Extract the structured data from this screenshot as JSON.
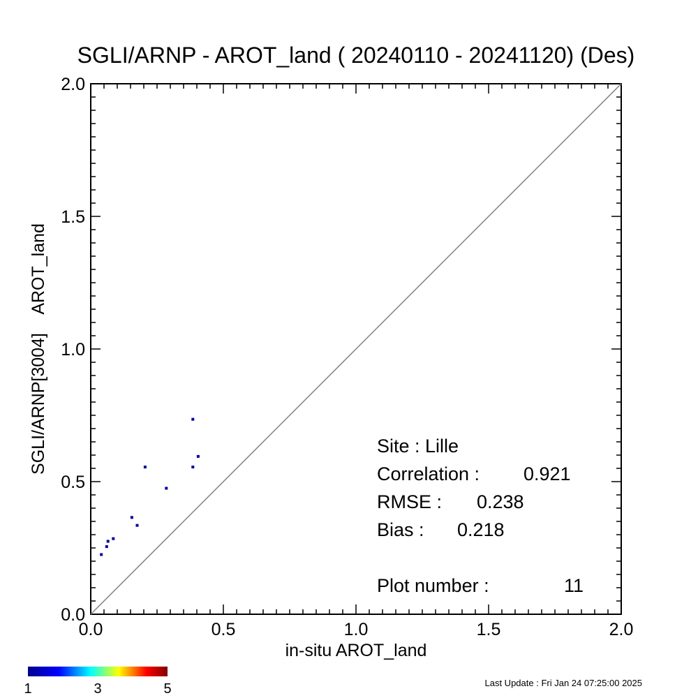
{
  "chart_data": {
    "type": "scatter",
    "title": "SGLI/ARNP - AROT_land ( 20240110 - 20241120) (Des)",
    "xlabel": "in-situ AROT_land",
    "ylabel": "SGLI/ARNP[3004]    AROT_land",
    "xlim": [
      0.0,
      2.0
    ],
    "ylim": [
      0.0,
      2.0
    ],
    "x_ticks": [
      "0.0",
      "0.5",
      "1.0",
      "1.5",
      "2.0"
    ],
    "y_ticks": [
      "0.0",
      "0.5",
      "1.0",
      "1.5",
      "2.0"
    ],
    "grid": false,
    "reference_line": "1:1",
    "point_color": "#0000a0",
    "line_color": "#808080",
    "points": [
      {
        "x": 0.04,
        "y": 0.225
      },
      {
        "x": 0.06,
        "y": 0.255
      },
      {
        "x": 0.065,
        "y": 0.275
      },
      {
        "x": 0.085,
        "y": 0.285
      },
      {
        "x": 0.155,
        "y": 0.365
      },
      {
        "x": 0.175,
        "y": 0.335
      },
      {
        "x": 0.205,
        "y": 0.555
      },
      {
        "x": 0.285,
        "y": 0.475
      },
      {
        "x": 0.385,
        "y": 0.735
      },
      {
        "x": 0.385,
        "y": 0.555
      },
      {
        "x": 0.405,
        "y": 0.595
      }
    ]
  },
  "stats": {
    "site_label": "Site : Lille",
    "correlation_label": "Correlation :",
    "correlation_value": "0.921",
    "rmse_label": "RMSE :",
    "rmse_value": "0.238",
    "bias_label": "Bias :",
    "bias_value": "0.218",
    "plot_number_label": "Plot number :",
    "plot_number_value": "11"
  },
  "colorbar": {
    "labels": [
      "1",
      "3",
      "5"
    ],
    "colors": [
      "#00008f",
      "#0000ff",
      "#00ffff",
      "#ffff00",
      "#ff0000",
      "#800000"
    ]
  },
  "footer": {
    "last_update": "Last Update : Fri Jan 24 07:25:00 2025"
  }
}
